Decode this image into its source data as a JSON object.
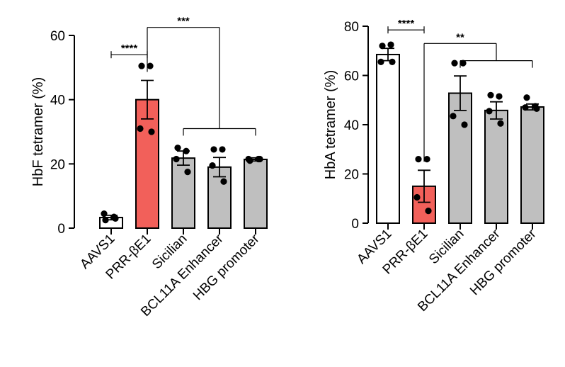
{
  "colors": {
    "white_bar": "#ffffff",
    "red_bar": "#f2605a",
    "gray_bar": "#bfbfbf",
    "stroke": "#000000"
  },
  "chart_data": [
    {
      "type": "bar",
      "categories": [
        "AAVS1",
        "PRR-βE1",
        "Sicilian",
        "BCL11A Enhancer",
        "HBG promoter"
      ],
      "ylabel": "HbF tetramer (%)",
      "xlabel": "",
      "ylim": [
        0,
        60
      ],
      "yticks": [
        0,
        20,
        40,
        60
      ],
      "bar_fill": [
        "white",
        "red",
        "gray",
        "gray",
        "gray"
      ],
      "values": [
        3.3,
        40.0,
        21.8,
        19.0,
        21.4
      ],
      "errors": [
        0.7,
        6.0,
        2.2,
        3.0,
        0.5
      ],
      "points": [
        [
          2.5,
          3.5,
          4.5,
          3.0
        ],
        [
          50.5,
          50.5,
          31.0,
          30.0
        ],
        [
          25.0,
          24.0,
          21.5,
          17.5
        ],
        [
          24.5,
          24.5,
          19.5,
          14.5
        ],
        [
          21.0,
          21.5,
          21.5,
          21.5
        ]
      ],
      "comparisons": [
        {
          "from": 0,
          "to": 1,
          "label": "****",
          "level": 54,
          "style": "capped"
        },
        {
          "from": 1,
          "to_group": [
            2,
            4
          ],
          "label": "***",
          "level": 62.5,
          "group_level": 31,
          "style": "bracket-to-group"
        }
      ]
    },
    {
      "type": "bar",
      "categories": [
        "AAVS1",
        "PRR-βE1",
        "Sicilian",
        "BCL11A Enhancer",
        "HBG promoter"
      ],
      "ylabel": "HbA tetramer (%)",
      "xlabel": "",
      "ylim": [
        0,
        80
      ],
      "yticks": [
        0,
        20,
        40,
        60,
        80
      ],
      "bar_fill": [
        "white",
        "red",
        "gray",
        "gray",
        "gray"
      ],
      "values": [
        68.5,
        15.0,
        52.8,
        45.8,
        47.2
      ],
      "errors": [
        2.5,
        6.5,
        7.0,
        3.5,
        1.2
      ],
      "points": [
        [
          72.0,
          72.5,
          65.5,
          65.5
        ],
        [
          26.0,
          26.0,
          10.5,
          5.0
        ],
        [
          65.0,
          65.0,
          43.5,
          40.0
        ],
        [
          52.0,
          51.5,
          45.5,
          40.5
        ],
        [
          51.0,
          47.5,
          47.0,
          46.5
        ]
      ],
      "comparisons": [
        {
          "from": 0,
          "to": 1,
          "label": "****",
          "level": 78.5,
          "style": "capped"
        },
        {
          "from": 1,
          "to_group": [
            2,
            4
          ],
          "label": "**",
          "level": 73,
          "group_level": 66,
          "style": "bracket-to-group"
        }
      ]
    }
  ]
}
